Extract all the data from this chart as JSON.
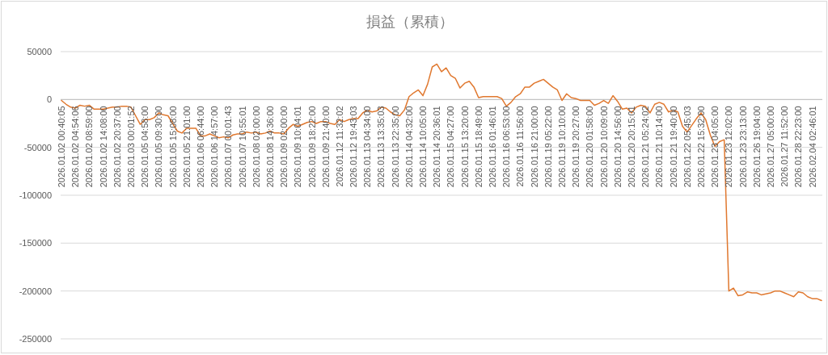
{
  "chart_data": {
    "type": "line",
    "title": "損益（累積）",
    "categories": [
      "2026.01.02 00:40:05",
      null,
      null,
      "2026.01.02 04:54:06",
      null,
      null,
      "2026.01.02 08:59:00",
      null,
      null,
      "2026.01.02 14:08:00",
      null,
      null,
      "2026.01.02 20:37:00",
      null,
      null,
      "2026.01.03 00:01:52",
      null,
      null,
      "2026.01.05 04:58:00",
      null,
      null,
      "2026.01.05 09:30:00",
      null,
      null,
      "2026.01.05 15:08:00",
      null,
      null,
      "2026.01.05 21:01:00",
      null,
      null,
      "2026.01.06 06:44:00",
      null,
      null,
      "2026.01.06 14:57:00",
      null,
      null,
      "2026.01.07 00:01:43",
      null,
      null,
      "2026.01.07 10:55:01",
      null,
      null,
      "2026.01.08 02:00:00",
      null,
      null,
      "2026.01.08 14:36:00",
      null,
      null,
      "2026.01.09 02:00:00",
      null,
      null,
      "2026.01.09 10:04:01",
      null,
      null,
      "2026.01.09 18:22:00",
      null,
      null,
      "2026.01.09 21:40:00",
      null,
      null,
      "2026.01.12 11:32:02",
      null,
      null,
      "2026.01.12 19:43:03",
      null,
      null,
      "2026.01.13 04:34:00",
      null,
      null,
      "2026.01.13 13:35:03",
      null,
      null,
      "2026.01.13 22:35:00",
      null,
      null,
      "2026.01.14 04:32:00",
      null,
      null,
      "2026.01.14 10:05:00",
      null,
      null,
      "2026.01.14 20:36:01",
      null,
      null,
      "2026.01.15 04:27:00",
      null,
      null,
      "2026.01.15 13:20:00",
      null,
      null,
      "2026.01.15 18:49:00",
      null,
      null,
      "2026.01.16 01:46:01",
      null,
      null,
      "2026.01.16 06:53:00",
      null,
      null,
      "2026.01.16 11:56:00",
      null,
      null,
      "2026.01.16 21:00:00",
      null,
      null,
      "2026.01.19 05:22:00",
      null,
      null,
      "2026.01.19 10:10:00",
      null,
      null,
      "2026.01.19 20:27:00",
      null,
      null,
      "2026.01.20 01:58:00",
      null,
      null,
      "2026.01.20 10:09:00",
      null,
      null,
      "2026.01.20 14:56:00",
      null,
      null,
      "2026.01.20 20:15:01",
      null,
      null,
      "2026.01.21 05:24:02",
      null,
      null,
      "2026.01.21 10:14:00",
      null,
      null,
      "2026.01.21 19:40:00",
      null,
      null,
      "2026.01.22 05:45:03",
      null,
      null,
      "2026.01.22 15:32:00",
      null,
      null,
      "2026.01.23 04:05:00",
      null,
      null,
      "2026.01.23 12:02:00",
      null,
      null,
      "2026.01.23 23:13:00",
      null,
      null,
      "2026.01.26 19:04:00",
      null,
      null,
      "2026.01.27 05:00:00",
      null,
      null,
      "2026.01.27 11:52:00",
      null,
      null,
      "2026.01.28 22:23:00",
      null,
      null,
      "2026.02.04 02:46:01",
      null,
      null
    ],
    "values": [
      -1000,
      -5000,
      -8000,
      -9000,
      -6000,
      -7000,
      -6000,
      -10000,
      -10000,
      -10000,
      -9000,
      -8000,
      -8000,
      -7000,
      -7000,
      -8000,
      -17000,
      -26000,
      -21000,
      -21000,
      -19000,
      -14000,
      -16000,
      -17000,
      -25000,
      -33000,
      -35000,
      -30000,
      -30000,
      -30000,
      -38000,
      -38000,
      -36000,
      -38000,
      -40000,
      -39000,
      -40000,
      -37000,
      -36000,
      -36000,
      -34000,
      -35000,
      -34000,
      -36000,
      -35000,
      -33000,
      -35000,
      -35000,
      -36000,
      -30000,
      -26000,
      -28000,
      -26000,
      -24000,
      -23000,
      -25000,
      -23000,
      -23000,
      -25000,
      -26000,
      -21000,
      -23000,
      -21000,
      -20000,
      -20000,
      -14000,
      -11000,
      -13000,
      -12000,
      -8000,
      -9000,
      -13000,
      -16000,
      -17000,
      -11000,
      3000,
      7000,
      10000,
      4000,
      16000,
      34000,
      37000,
      29000,
      33000,
      25000,
      22000,
      12000,
      17000,
      19000,
      13000,
      2000,
      3000,
      3000,
      3000,
      3000,
      1000,
      -7000,
      -3000,
      3000,
      6000,
      13000,
      13000,
      17000,
      19000,
      21000,
      17000,
      13000,
      10000,
      -1000,
      6000,
      2000,
      1000,
      -1000,
      -1000,
      -1000,
      -6000,
      -4000,
      -1000,
      -4000,
      4000,
      -2000,
      -10000,
      -9000,
      -14000,
      -8000,
      -6000,
      -7000,
      -14000,
      -5000,
      -3000,
      -5000,
      -13000,
      -11000,
      -13000,
      -28000,
      -34000,
      -27000,
      -20000,
      -14000,
      -21000,
      -37000,
      -49000,
      -44000,
      -42000,
      -200000,
      -197000,
      -205000,
      -204000,
      -201000,
      -202000,
      -202000,
      -204000,
      -203000,
      -202000,
      -200000,
      -200000,
      -202000,
      -204000,
      -206000,
      -201000,
      -202000,
      -206000,
      -208000,
      -208000,
      -210000
    ],
    "color": "#e0782f",
    "ylim": [
      -250000,
      50000
    ],
    "yticks": [
      50000,
      0,
      -50000,
      -100000,
      -150000,
      -200000,
      -250000
    ],
    "grid": "y"
  }
}
